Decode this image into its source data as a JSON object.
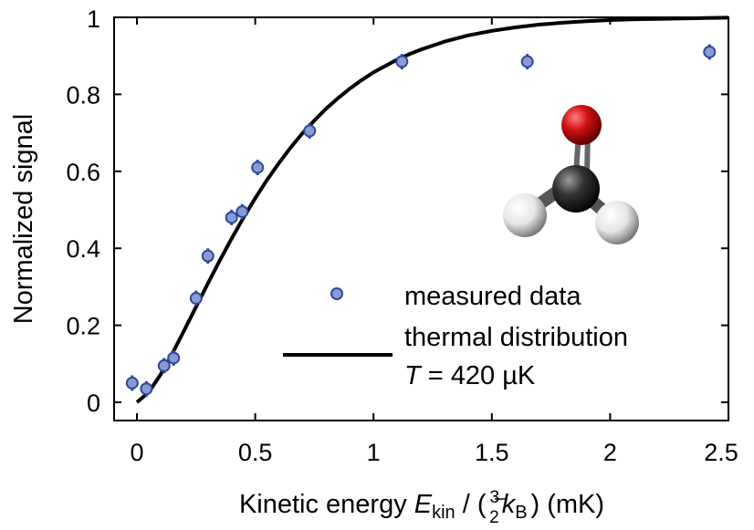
{
  "chart_data": {
    "type": "scatter",
    "xlabel": {
      "prefix": "Kinetic energy ",
      "symbol": "E",
      "symbol_sub": "kin",
      "slash": " / (",
      "frac_num": "3",
      "frac_den": "2",
      "kB": "k",
      "kB_sub": "B",
      "suffix": ") (mK)"
    },
    "ylabel": "Normalized signal",
    "xlim": [
      -0.1,
      2.5
    ],
    "ylim": [
      -0.05,
      1.0
    ],
    "x_ticks": [
      "0",
      "0.5",
      "1",
      "1.5",
      "2",
      "2.5"
    ],
    "x_tick_values": [
      0,
      0.5,
      1,
      1.5,
      2,
      2.5
    ],
    "y_ticks": [
      "0",
      "0.2",
      "0.4",
      "0.6",
      "0.8",
      "1"
    ],
    "y_tick_values": [
      0,
      0.2,
      0.4,
      0.6,
      0.8,
      1.0
    ],
    "grid": false,
    "legend_position": "bottom-right",
    "series": [
      {
        "name": "measured data",
        "kind": "scatter-with-errorbars",
        "color": "#8a9bd0",
        "edge_color": "#2d4aa0",
        "x": [
          -0.02,
          0.04,
          0.115,
          0.155,
          0.25,
          0.3,
          0.4,
          0.445,
          0.51,
          0.73,
          1.12,
          1.65,
          2.42
        ],
        "y": [
          0.05,
          0.035,
          0.095,
          0.115,
          0.27,
          0.38,
          0.48,
          0.495,
          0.61,
          0.705,
          0.885,
          0.885,
          0.91
        ],
        "yerr": [
          0.02,
          0.02,
          0.02,
          0.02,
          0.02,
          0.02,
          0.02,
          0.02,
          0.02,
          0.02,
          0.02,
          0.02,
          0.02
        ]
      },
      {
        "name": "thermal distribution",
        "name_line2_symbol": "T",
        "name_line2_rest": " = 420 µK",
        "kind": "line",
        "color": "#000000",
        "x": [
          0,
          0.05,
          0.1,
          0.15,
          0.2,
          0.25,
          0.3,
          0.35,
          0.4,
          0.45,
          0.5,
          0.55,
          0.6,
          0.65,
          0.7,
          0.75,
          0.8,
          0.85,
          0.9,
          0.95,
          1.0,
          1.05,
          1.1,
          1.15,
          1.2,
          1.3,
          1.4,
          1.5,
          1.6,
          1.7,
          1.8,
          1.9,
          2.0,
          2.1,
          2.2,
          2.3,
          2.4,
          2.5
        ],
        "y": [
          0,
          0.026,
          0.072,
          0.127,
          0.187,
          0.248,
          0.309,
          0.368,
          0.425,
          0.479,
          0.53,
          0.578,
          0.621,
          0.662,
          0.699,
          0.732,
          0.763,
          0.79,
          0.815,
          0.837,
          0.857,
          0.874,
          0.89,
          0.904,
          0.916,
          0.937,
          0.953,
          0.965,
          0.974,
          0.981,
          0.986,
          0.99,
          0.993,
          0.995,
          0.996,
          0.997,
          0.998,
          0.999
        ]
      }
    ]
  },
  "molecule": {
    "name": "formaldehyde-molecule",
    "oxygen_color": "#d01010",
    "carbon_color": "#2a2a2a",
    "hydrogen_color": "#e6e6e6"
  }
}
